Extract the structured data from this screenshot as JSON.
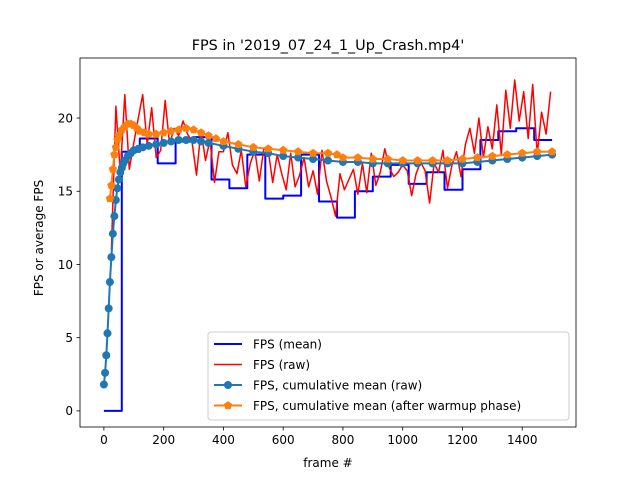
{
  "chart_data": {
    "type": "line",
    "title": "FPS in '2019_07_24_1_Up_Crash.mp4'",
    "xlabel": "frame #",
    "ylabel": "FPS or average FPS",
    "xlim": [
      -80,
      1580
    ],
    "ylim": [
      -1.1,
      24.1
    ],
    "xticks": [
      0,
      200,
      400,
      600,
      800,
      1000,
      1200,
      1400
    ],
    "yticks": [
      0,
      5,
      10,
      15,
      20
    ],
    "grid": false,
    "legend_position": "lower-right",
    "series": [
      {
        "name": "FPS (mean)",
        "color": "#0000ff",
        "kind": "step",
        "x": [
          0,
          60,
          60,
          120,
          120,
          180,
          180,
          240,
          240,
          300,
          300,
          360,
          360,
          420,
          420,
          480,
          480,
          540,
          540,
          600,
          600,
          660,
          660,
          720,
          720,
          780,
          780,
          840,
          840,
          900,
          900,
          960,
          960,
          1020,
          1020,
          1080,
          1080,
          1140,
          1140,
          1200,
          1200,
          1260,
          1260,
          1320,
          1320,
          1380,
          1380,
          1440,
          1440,
          1500
        ],
        "y": [
          0,
          0,
          17.7,
          17.7,
          18.6,
          18.6,
          16.9,
          16.9,
          18.4,
          18.4,
          18.7,
          18.7,
          15.8,
          15.8,
          15.2,
          15.2,
          17.5,
          17.5,
          14.5,
          14.5,
          14.7,
          14.7,
          17.5,
          17.5,
          14.3,
          14.3,
          13.2,
          13.2,
          15.0,
          15.0,
          16.0,
          16.0,
          16.8,
          16.8,
          15.5,
          15.5,
          16.3,
          16.3,
          15.1,
          15.1,
          16.5,
          16.5,
          18.5,
          18.5,
          19.1,
          19.1,
          19.3,
          19.3,
          18.5,
          18.5
        ]
      },
      {
        "name": "FPS (raw)",
        "color": "#ff0000",
        "kind": "line",
        "x": [
          25,
          40,
          55,
          70,
          85,
          100,
          115,
          130,
          145,
          160,
          175,
          190,
          205,
          220,
          235,
          250,
          265,
          280,
          295,
          310,
          325,
          340,
          355,
          370,
          385,
          400,
          415,
          430,
          445,
          460,
          475,
          490,
          505,
          520,
          535,
          550,
          565,
          580,
          595,
          610,
          625,
          640,
          655,
          670,
          685,
          700,
          715,
          730,
          745,
          760,
          775,
          790,
          805,
          820,
          835,
          850,
          865,
          880,
          895,
          910,
          925,
          940,
          955,
          970,
          985,
          1000,
          1015,
          1030,
          1045,
          1060,
          1075,
          1090,
          1105,
          1120,
          1135,
          1150,
          1165,
          1180,
          1195,
          1210,
          1225,
          1240,
          1255,
          1270,
          1285,
          1300,
          1315,
          1330,
          1345,
          1360,
          1375,
          1390,
          1405,
          1420,
          1435,
          1450,
          1465,
          1480,
          1495
        ],
        "y": [
          11.0,
          20.8,
          16.2,
          21.6,
          16.5,
          18.3,
          20.0,
          21.6,
          18.2,
          20.7,
          17.3,
          17.8,
          21.2,
          18.2,
          19.3,
          18.8,
          19.8,
          18.9,
          18.4,
          16.1,
          19.2,
          17.1,
          18.5,
          15.6,
          17.7,
          17.7,
          19.0,
          16.8,
          16.2,
          17.8,
          15.3,
          16.9,
          17.8,
          15.7,
          17.9,
          17.8,
          15.6,
          17.5,
          16.2,
          15.1,
          17.6,
          15.3,
          16.1,
          17.3,
          15.3,
          16.4,
          14.8,
          17.8,
          15.7,
          14.6,
          13.3,
          16.2,
          15.1,
          15.8,
          16.5,
          14.8,
          16.9,
          14.9,
          17.6,
          15.4,
          16.3,
          17.9,
          16.6,
          16.0,
          16.3,
          16.8,
          16.4,
          14.7,
          16.2,
          17.0,
          16.4,
          14.2,
          16.9,
          16.3,
          17.8,
          15.2,
          16.8,
          17.7,
          16.0,
          18.2,
          19.3,
          17.6,
          20.0,
          17.3,
          19.4,
          17.9,
          20.9,
          17.5,
          21.9,
          19.3,
          22.6,
          19.8,
          21.8,
          18.6,
          22.3,
          17.5,
          20.4,
          18.9,
          21.8
        ]
      },
      {
        "name": "FPS, cumulative mean (raw)",
        "color": "#1f77b4",
        "kind": "line-markers",
        "marker": "circle",
        "x": [
          0,
          4,
          8,
          12,
          16,
          20,
          25,
          30,
          35,
          40,
          45,
          50,
          55,
          60,
          65,
          70,
          80,
          90,
          100,
          115,
          130,
          150,
          175,
          200,
          225,
          250,
          275,
          300,
          325,
          350,
          400,
          450,
          500,
          550,
          600,
          650,
          700,
          750,
          800,
          850,
          900,
          950,
          1000,
          1050,
          1100,
          1150,
          1200,
          1250,
          1300,
          1350,
          1400,
          1450,
          1500
        ],
        "y": [
          1.8,
          2.6,
          3.8,
          5.3,
          7.0,
          8.8,
          10.5,
          12.1,
          13.3,
          14.4,
          15.2,
          15.8,
          16.3,
          16.6,
          16.9,
          17.1,
          17.4,
          17.6,
          17.8,
          17.9,
          18.0,
          18.1,
          18.2,
          18.3,
          18.4,
          18.5,
          18.5,
          18.5,
          18.4,
          18.3,
          18.1,
          17.9,
          17.7,
          17.6,
          17.4,
          17.3,
          17.2,
          17.1,
          17.0,
          17.0,
          16.9,
          16.9,
          16.9,
          16.9,
          16.9,
          16.9,
          16.9,
          17.0,
          17.1,
          17.2,
          17.3,
          17.4,
          17.5
        ]
      },
      {
        "name": "FPS, cumulative mean (after warmup phase)",
        "color": "#ff7f0e",
        "kind": "line-markers",
        "marker": "pentagon",
        "x": [
          20,
          25,
          30,
          35,
          40,
          45,
          50,
          60,
          70,
          80,
          90,
          100,
          110,
          120,
          135,
          150,
          175,
          200,
          225,
          250,
          275,
          300,
          325,
          350,
          375,
          400,
          450,
          500,
          550,
          600,
          650,
          700,
          750,
          780,
          800,
          850,
          900,
          950,
          1000,
          1050,
          1100,
          1150,
          1200,
          1250,
          1300,
          1350,
          1400,
          1450,
          1500
        ],
        "y": [
          14.5,
          15.4,
          16.5,
          17.5,
          18.0,
          18.5,
          18.8,
          19.2,
          19.4,
          19.6,
          19.6,
          19.5,
          19.3,
          19.1,
          19.0,
          18.9,
          18.9,
          19.0,
          19.1,
          19.2,
          19.3,
          19.2,
          19.0,
          18.8,
          18.6,
          18.4,
          18.2,
          18.0,
          17.9,
          17.8,
          17.7,
          17.6,
          17.6,
          17.5,
          17.3,
          17.3,
          17.2,
          17.2,
          17.1,
          17.1,
          17.1,
          17.1,
          17.2,
          17.3,
          17.4,
          17.5,
          17.6,
          17.7,
          17.7
        ]
      }
    ]
  }
}
